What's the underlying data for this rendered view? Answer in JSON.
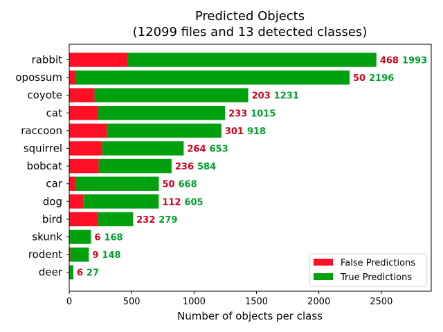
{
  "chart_data": {
    "type": "bar",
    "orientation": "horizontal",
    "stacked": true,
    "title": "Predicted Objects",
    "subtitle": "(12099 files and 13 detected classes)",
    "xlabel": "Number of objects per class",
    "ylabel": "",
    "xlim": [
      0,
      2900
    ],
    "xticks": [
      0,
      500,
      1000,
      1500,
      2000,
      2500
    ],
    "categories": [
      "rabbit",
      "opossum",
      "coyote",
      "cat",
      "raccoon",
      "squirrel",
      "bobcat",
      "car",
      "dog",
      "bird",
      "skunk",
      "rodent",
      "deer"
    ],
    "series": [
      {
        "name": "False Predictions",
        "color": "#ff0f24",
        "values": [
          468,
          50,
          203,
          233,
          301,
          264,
          236,
          50,
          112,
          232,
          6,
          9,
          6
        ]
      },
      {
        "name": "True Predictions",
        "color": "#00a00e",
        "values": [
          1993,
          2196,
          1231,
          1015,
          918,
          653,
          584,
          668,
          605,
          279,
          168,
          148,
          27
        ]
      }
    ],
    "label_colors": {
      "false": "#d1001c",
      "true": "#00a02e"
    },
    "legend": {
      "position": "lower-right"
    },
    "grid": false
  }
}
